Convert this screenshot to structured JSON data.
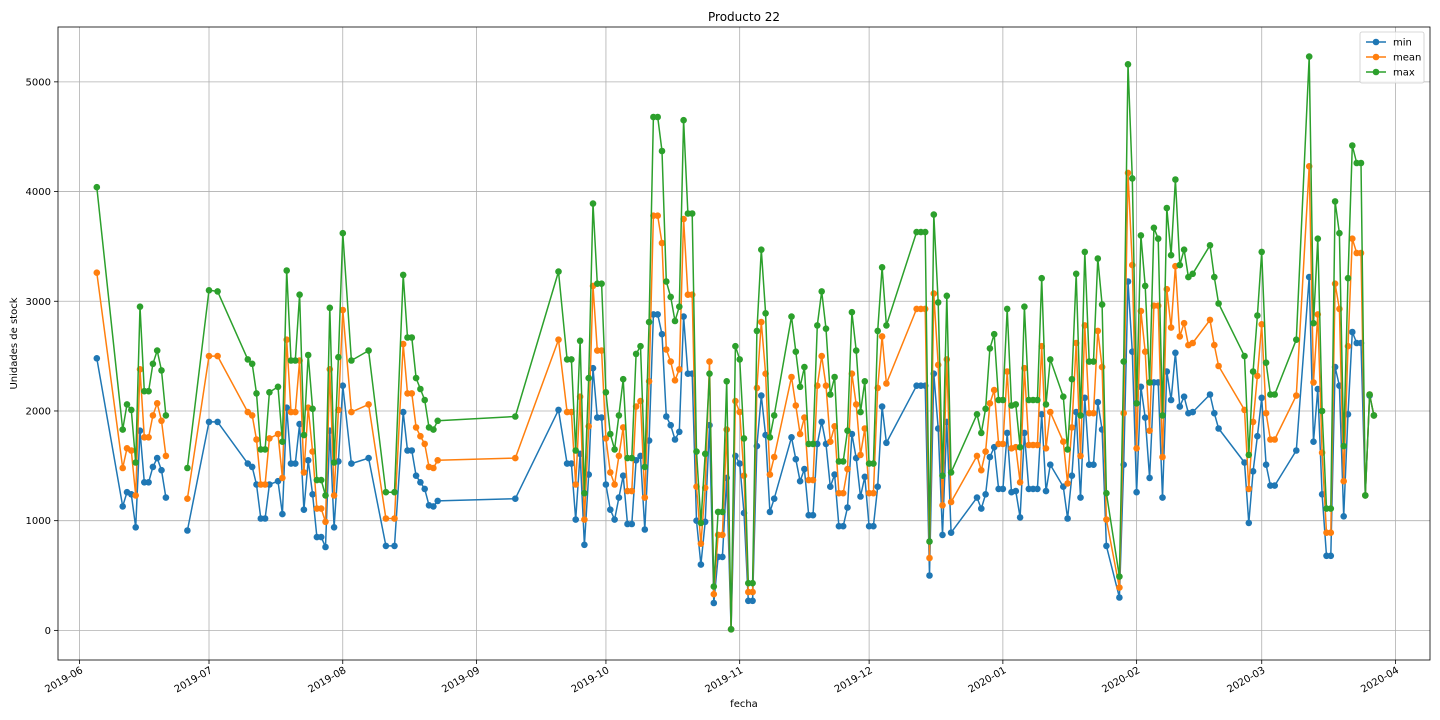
{
  "chart_data": {
    "type": "line",
    "title": "Producto 22",
    "xlabel": "fecha",
    "ylabel": "Unidades de stock",
    "xlim": [
      "2019-05-27",
      "2020-04-09"
    ],
    "ylim": [
      -270,
      5500
    ],
    "grid": true,
    "legend_position": "top-right",
    "x_ticks": [
      {
        "date": "2019-06-01",
        "label": "2019-06"
      },
      {
        "date": "2019-07-01",
        "label": "2019-07"
      },
      {
        "date": "2019-08-01",
        "label": "2019-08"
      },
      {
        "date": "2019-09-01",
        "label": "2019-09"
      },
      {
        "date": "2019-10-01",
        "label": "2019-10"
      },
      {
        "date": "2019-11-01",
        "label": "2019-11"
      },
      {
        "date": "2019-12-01",
        "label": "2019-12"
      },
      {
        "date": "2020-01-01",
        "label": "2020-01"
      },
      {
        "date": "2020-02-01",
        "label": "2020-02"
      },
      {
        "date": "2020-03-01",
        "label": "2020-03"
      },
      {
        "date": "2020-04-01",
        "label": "2020-04"
      }
    ],
    "y_ticks": [
      0,
      1000,
      2000,
      3000,
      4000,
      5000
    ],
    "x": [
      "2019-06-05",
      "2019-06-11",
      "2019-06-12",
      "2019-06-13",
      "2019-06-14",
      "2019-06-15",
      "2019-06-16",
      "2019-06-17",
      "2019-06-18",
      "2019-06-19",
      "2019-06-20",
      "2019-06-21",
      "2019-06-22",
      "2019-06-26",
      "2019-07-01",
      "2019-07-03",
      "2019-07-10",
      "2019-07-11",
      "2019-07-12",
      "2019-07-13",
      "2019-07-14",
      "2019-07-15",
      "2019-07-17",
      "2019-07-18",
      "2019-07-19",
      "2019-07-20",
      "2019-07-21",
      "2019-07-22",
      "2019-07-23",
      "2019-07-24",
      "2019-07-25",
      "2019-07-26",
      "2019-07-27",
      "2019-07-28",
      "2019-07-29",
      "2019-07-30",
      "2019-07-31",
      "2019-08-01",
      "2019-08-03",
      "2019-08-07",
      "2019-08-11",
      "2019-08-13",
      "2019-08-15",
      "2019-08-16",
      "2019-08-17",
      "2019-08-18",
      "2019-08-19",
      "2019-08-20",
      "2019-08-21",
      "2019-08-22",
      "2019-08-23",
      "2019-09-10",
      "2019-09-20",
      "2019-09-22",
      "2019-09-23",
      "2019-09-24",
      "2019-09-25",
      "2019-09-26",
      "2019-09-27",
      "2019-09-28",
      "2019-09-29",
      "2019-09-30",
      "2019-10-01",
      "2019-10-02",
      "2019-10-03",
      "2019-10-04",
      "2019-10-05",
      "2019-10-06",
      "2019-10-07",
      "2019-10-08",
      "2019-10-09",
      "2019-10-10",
      "2019-10-11",
      "2019-10-12",
      "2019-10-13",
      "2019-10-14",
      "2019-10-15",
      "2019-10-16",
      "2019-10-17",
      "2019-10-18",
      "2019-10-19",
      "2019-10-20",
      "2019-10-21",
      "2019-10-22",
      "2019-10-23",
      "2019-10-24",
      "2019-10-25",
      "2019-10-26",
      "2019-10-27",
      "2019-10-28",
      "2019-10-29",
      "2019-10-30",
      "2019-10-31",
      "2019-11-01",
      "2019-11-02",
      "2019-11-03",
      "2019-11-04",
      "2019-11-05",
      "2019-11-06",
      "2019-11-07",
      "2019-11-08",
      "2019-11-09",
      "2019-11-13",
      "2019-11-14",
      "2019-11-15",
      "2019-11-16",
      "2019-11-17",
      "2019-11-18",
      "2019-11-19",
      "2019-11-20",
      "2019-11-21",
      "2019-11-22",
      "2019-11-23",
      "2019-11-24",
      "2019-11-25",
      "2019-11-26",
      "2019-11-27",
      "2019-11-28",
      "2019-11-29",
      "2019-11-30",
      "2019-12-01",
      "2019-12-02",
      "2019-12-03",
      "2019-12-04",
      "2019-12-05",
      "2019-12-12",
      "2019-12-13",
      "2019-12-14",
      "2019-12-15",
      "2019-12-16",
      "2019-12-17",
      "2019-12-18",
      "2019-12-19",
      "2019-12-20",
      "2019-12-26",
      "2019-12-27",
      "2019-12-28",
      "2019-12-29",
      "2019-12-30",
      "2019-12-31",
      "2020-01-01",
      "2020-01-02",
      "2020-01-03",
      "2020-01-04",
      "2020-01-05",
      "2020-01-06",
      "2020-01-07",
      "2020-01-08",
      "2020-01-09",
      "2020-01-10",
      "2020-01-11",
      "2020-01-12",
      "2020-01-15",
      "2020-01-16",
      "2020-01-17",
      "2020-01-18",
      "2020-01-19",
      "2020-01-20",
      "2020-01-21",
      "2020-01-22",
      "2020-01-23",
      "2020-01-24",
      "2020-01-25",
      "2020-01-28",
      "2020-01-29",
      "2020-01-30",
      "2020-01-31",
      "2020-02-01",
      "2020-02-02",
      "2020-02-03",
      "2020-02-04",
      "2020-02-05",
      "2020-02-06",
      "2020-02-07",
      "2020-02-08",
      "2020-02-09",
      "2020-02-10",
      "2020-02-11",
      "2020-02-12",
      "2020-02-13",
      "2020-02-14",
      "2020-02-18",
      "2020-02-19",
      "2020-02-20",
      "2020-02-26",
      "2020-02-27",
      "2020-02-28",
      "2020-02-29",
      "2020-03-01",
      "2020-03-02",
      "2020-03-03",
      "2020-03-04",
      "2020-03-09",
      "2020-03-12",
      "2020-03-13",
      "2020-03-14",
      "2020-03-15",
      "2020-03-16",
      "2020-03-17",
      "2020-03-18",
      "2020-03-19",
      "2020-03-20",
      "2020-03-21",
      "2020-03-22",
      "2020-03-23",
      "2020-03-24",
      "2020-03-25",
      "2020-03-26",
      "2020-03-27"
    ],
    "series": [
      {
        "name": "min",
        "color": "#1f77b4",
        "values": [
          2480,
          1130,
          1260,
          1240,
          940,
          1820,
          1350,
          1350,
          1490,
          1570,
          1460,
          1210,
          null,
          910,
          1900,
          1900,
          1520,
          1490,
          1330,
          1020,
          1020,
          1330,
          1360,
          1060,
          2030,
          1520,
          1520,
          1880,
          1100,
          1550,
          1240,
          850,
          850,
          760,
          1820,
          940,
          1540,
          2230,
          1520,
          1570,
          770,
          770,
          1990,
          1640,
          1640,
          1410,
          1350,
          1290,
          1140,
          1130,
          1180,
          1200,
          2010,
          1520,
          1520,
          1010,
          1610,
          780,
          1420,
          2390,
          1940,
          1940,
          1330,
          1100,
          1010,
          1210,
          1410,
          970,
          970,
          1550,
          1590,
          920,
          1730,
          2880,
          2880,
          2700,
          1950,
          1870,
          1740,
          1810,
          2860,
          2340,
          2340,
          1000,
          600,
          990,
          1870,
          250,
          670,
          670,
          1390,
          10,
          1590,
          1520,
          1070,
          270,
          270,
          1680,
          2140,
          1780,
          1080,
          1200,
          1760,
          1560,
          1360,
          1470,
          1050,
          1050,
          1700,
          1900,
          1700,
          1310,
          1420,
          950,
          950,
          1120,
          1790,
          1570,
          1220,
          1400,
          950,
          950,
          1310,
          2040,
          1710,
          2230,
          2230,
          2230,
          500,
          2340,
          1840,
          870,
          1900,
          890,
          1210,
          1110,
          1240,
          1580,
          1670,
          1290,
          1290,
          1800,
          1260,
          1270,
          1030,
          1800,
          1290,
          1290,
          1290,
          1970,
          1270,
          1510,
          1310,
          1020,
          1410,
          1990,
          1210,
          2120,
          1510,
          1510,
          2080,
          1830,
          770,
          300,
          1510,
          3180,
          2540,
          1260,
          2220,
          1940,
          1390,
          2260,
          2260,
          1210,
          2360,
          2100,
          2530,
          2040,
          2130,
          1980,
          1990,
          2150,
          1980,
          1840,
          1530,
          980,
          1450,
          1770,
          2120,
          1510,
          1320,
          1320,
          1640,
          3220,
          1720,
          2200,
          1240,
          680,
          680,
          2400,
          2230,
          1040,
          1970,
          2720,
          2620,
          2620,
          1230,
          2140,
          1960
        ]
      },
      {
        "name": "mean",
        "color": "#ff7f0e",
        "values": [
          3260,
          1480,
          1660,
          1640,
          1230,
          2380,
          1760,
          1760,
          1960,
          2070,
          1910,
          1590,
          null,
          1200,
          2500,
          2500,
          1990,
          1960,
          1740,
          1330,
          1330,
          1750,
          1790,
          1390,
          2650,
          1990,
          1990,
          2460,
          1440,
          2030,
          1630,
          1110,
          1110,
          990,
          2380,
          1230,
          2010,
          2920,
          1990,
          2060,
          1020,
          1020,
          2610,
          2160,
          2160,
          1850,
          1770,
          1700,
          1490,
          1480,
          1550,
          1570,
          2650,
          1990,
          1990,
          1330,
          2130,
          1010,
          1860,
          3140,
          2550,
          2550,
          1750,
          1440,
          1330,
          1590,
          1850,
          1270,
          1270,
          2040,
          2090,
          1210,
          2270,
          3780,
          3780,
          3530,
          2560,
          2450,
          2280,
          2380,
          3750,
          3060,
          3060,
          1310,
          790,
          1300,
          2450,
          330,
          870,
          870,
          1830,
          10,
          2090,
          1990,
          1410,
          350,
          350,
          2210,
          2810,
          2340,
          1420,
          1580,
          2310,
          2050,
          1790,
          1940,
          1370,
          1370,
          2230,
          2500,
          2230,
          1720,
          1860,
          1250,
          1250,
          1470,
          2340,
          2060,
          1600,
          1840,
          1250,
          1250,
          2210,
          2680,
          2250,
          2930,
          2930,
          2930,
          660,
          3070,
          2420,
          1140,
          2470,
          1170,
          1590,
          1460,
          1630,
          2070,
          2190,
          1700,
          1700,
          2360,
          1660,
          1670,
          1350,
          2390,
          1690,
          1690,
          1690,
          2590,
          1660,
          1990,
          1720,
          1340,
          1850,
          2620,
          1590,
          2780,
          1980,
          1980,
          2730,
          2400,
          1010,
          390,
          1980,
          4170,
          3330,
          1660,
          2910,
          2540,
          1820,
          2960,
          2960,
          1580,
          3110,
          2760,
          3320,
          2680,
          2800,
          2600,
          2620,
          2830,
          2600,
          2410,
          2010,
          1290,
          1900,
          2320,
          2790,
          1980,
          1740,
          1740,
          2140,
          4230,
          2260,
          2880,
          1620,
          890,
          890,
          3160,
          2930,
          1360,
          2590,
          3570,
          3440,
          3440,
          1230,
          2150,
          1960
        ]
      },
      {
        "name": "max",
        "color": "#2ca02c",
        "values": [
          4040,
          1830,
          2060,
          2010,
          1530,
          2950,
          2180,
          2180,
          2430,
          2550,
          2370,
          1960,
          null,
          1480,
          3100,
          3090,
          2470,
          2430,
          2160,
          1650,
          1650,
          2170,
          2220,
          1720,
          3280,
          2460,
          2460,
          3060,
          1780,
          2510,
          2020,
          1370,
          1370,
          1230,
          2940,
          1530,
          2490,
          3620,
          2460,
          2550,
          1260,
          1260,
          3240,
          2670,
          2670,
          2300,
          2200,
          2100,
          1850,
          1830,
          1910,
          1950,
          3270,
          2470,
          2470,
          1640,
          2640,
          1250,
          2300,
          3890,
          3160,
          3160,
          2170,
          1790,
          1650,
          1960,
          2290,
          1570,
          1570,
          2520,
          2590,
          1490,
          2810,
          4680,
          4680,
          4370,
          3180,
          3040,
          2820,
          2950,
          4650,
          3800,
          3800,
          1630,
          980,
          1610,
          2340,
          400,
          1080,
          1080,
          2270,
          10,
          2590,
          2470,
          1750,
          430,
          430,
          2730,
          3470,
          2890,
          1760,
          1960,
          2860,
          2540,
          2220,
          2400,
          1700,
          1700,
          2780,
          3090,
          2750,
          2150,
          2310,
          1540,
          1540,
          1820,
          2900,
          2550,
          1990,
          2270,
          1520,
          1520,
          2730,
          3310,
          2780,
          3630,
          3630,
          3630,
          810,
          3790,
          2990,
          1410,
          3050,
          1440,
          1970,
          1800,
          2020,
          2570,
          2700,
          2100,
          2100,
          2930,
          2050,
          2060,
          1670,
          2950,
          2100,
          2100,
          2100,
          3210,
          2060,
          2470,
          2130,
          1650,
          2290,
          3250,
          1960,
          3450,
          2450,
          2450,
          3390,
          2970,
          1250,
          490,
          2450,
          5160,
          4120,
          2070,
          3600,
          3140,
          2260,
          3670,
          3570,
          1960,
          3850,
          3420,
          4110,
          3330,
          3470,
          3220,
          3250,
          3510,
          3220,
          2980,
          2500,
          1600,
          2360,
          2870,
          3450,
          2440,
          2150,
          2150,
          2650,
          5230,
          2800,
          3570,
          2000,
          1110,
          1110,
          3910,
          3620,
          1680,
          3210,
          4420,
          4260,
          4260,
          1230,
          2150,
          1960
        ]
      }
    ]
  }
}
